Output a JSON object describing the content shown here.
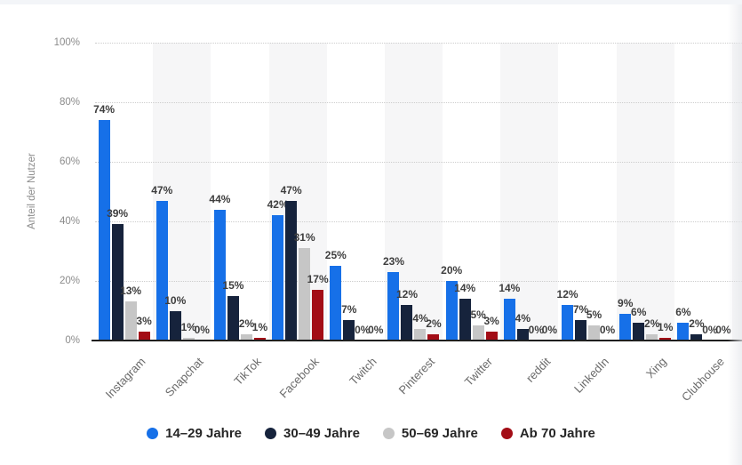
{
  "chart_data": {
    "type": "bar",
    "title": "",
    "xlabel": "",
    "ylabel": "Anteil der Nutzer",
    "ylim": [
      0,
      100
    ],
    "ytick_values": [
      0,
      20,
      40,
      60,
      80,
      100
    ],
    "ytick_labels": [
      "0%",
      "20%",
      "40%",
      "60%",
      "80%",
      "100%"
    ],
    "grid": "horizontal-dotted",
    "legend_position": "bottom",
    "plot_band_color": "#f6f6f7",
    "axis_line_color": "#1f1f1f",
    "value_suffix": "%",
    "categories": [
      "Instagram",
      "Snapchat",
      "TikTok",
      "Facebook",
      "Twitch",
      "Pinterest",
      "Twitter",
      "reddit",
      "LinkedIn",
      "Xing",
      "Clubhouse"
    ],
    "series": [
      {
        "name": "14–29 Jahre",
        "color": "#1670e8",
        "values": [
          74,
          47,
          44,
          42,
          25,
          23,
          20,
          14,
          12,
          9,
          6
        ]
      },
      {
        "name": "30–49 Jahre",
        "color": "#16233c",
        "values": [
          39,
          10,
          15,
          47,
          7,
          12,
          14,
          4,
          7,
          6,
          2
        ]
      },
      {
        "name": "50–69 Jahre",
        "color": "#c6c6c6",
        "values": [
          13,
          1,
          2,
          31,
          0,
          4,
          5,
          0,
          5,
          2,
          0
        ]
      },
      {
        "name": "Ab 70 Jahre",
        "color": "#a30d16",
        "values": [
          3,
          0,
          1,
          17,
          0,
          2,
          3,
          0,
          0,
          1,
          0
        ]
      }
    ]
  }
}
